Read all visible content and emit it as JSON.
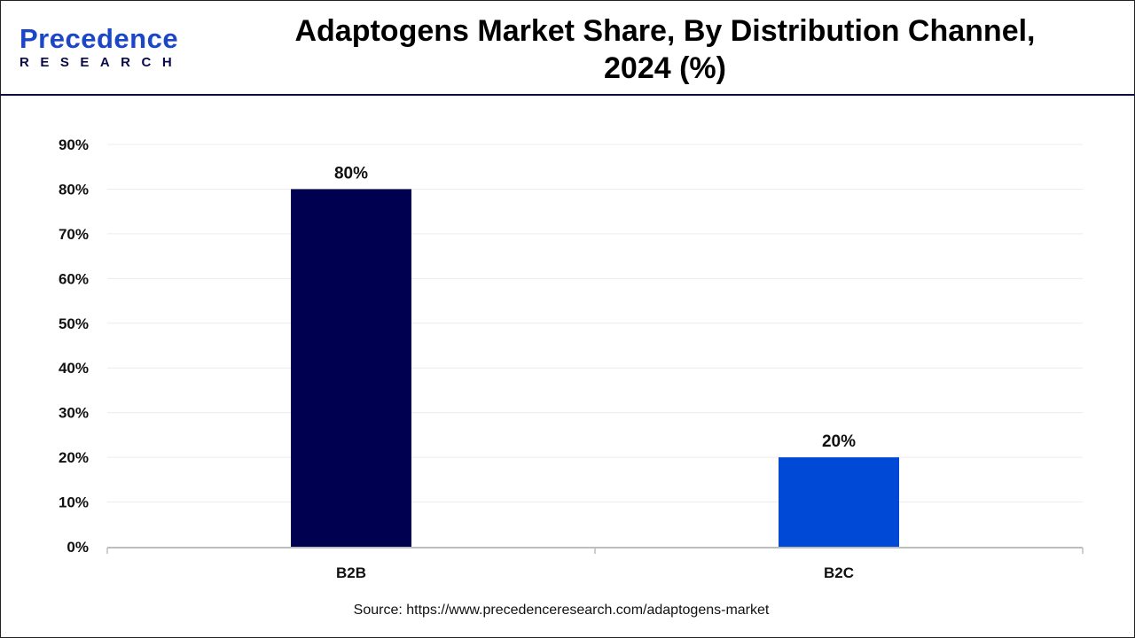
{
  "header": {
    "logo_text": "Precedence",
    "logo_subtext": "RESEARCH",
    "title_line1": "Adaptogens Market Share, By Distribution Channel,",
    "title_line2": "2024 (%)"
  },
  "chart_data": {
    "type": "bar",
    "title": "Adaptogens Market Share, By Distribution Channel, 2024 (%)",
    "categories": [
      "B2B",
      "B2C"
    ],
    "values": [
      80,
      20
    ],
    "data_labels": [
      "80%",
      "20%"
    ],
    "colors": [
      "#000050",
      "#0049d6"
    ],
    "ylim": [
      0,
      90
    ],
    "yticks": [
      "0%",
      "10%",
      "20%",
      "30%",
      "40%",
      "50%",
      "60%",
      "70%",
      "80%",
      "90%"
    ],
    "grid": true,
    "xlabel": "",
    "ylabel": ""
  },
  "footer": {
    "source": "Source: https://www.precedenceresearch.com/adaptogens-market"
  }
}
